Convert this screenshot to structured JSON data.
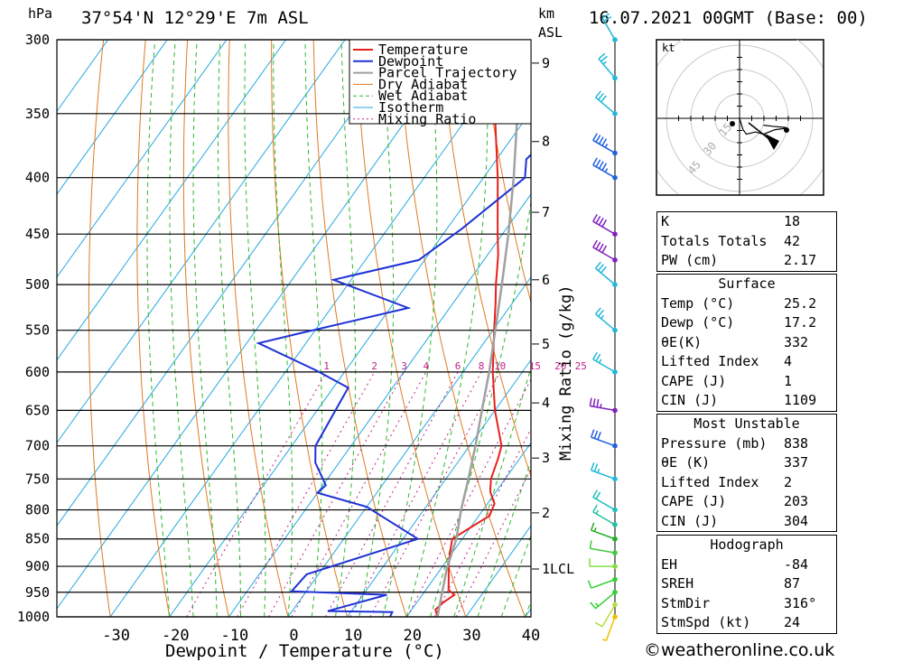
{
  "header": {
    "location": "37°54'N  12°29'E  7m  ASL",
    "datetime": "16.07.2021  00GMT  (Base: 00)",
    "pressure_unit": "hPa",
    "height_unit_line1": "km",
    "height_unit_line2": "ASL"
  },
  "chart_data": {
    "type": "line",
    "title": "37°54'N  12°29'E  7m  ASL",
    "xlabel": "Dewpoint / Temperature (°C)",
    "ylabel": "hPa",
    "y2label": "Mixing Ratio (g/kg)",
    "xlim": [
      -40,
      40
    ],
    "ylim": [
      1000,
      300
    ],
    "x_ticks": [
      "-30",
      "-20",
      "-10",
      "0",
      "10",
      "20",
      "30",
      "40"
    ],
    "y_ticks": [
      300,
      350,
      400,
      450,
      500,
      550,
      600,
      650,
      700,
      750,
      800,
      850,
      900,
      950,
      1000
    ],
    "km_ticks": [
      {
        "label": "9",
        "p": 315
      },
      {
        "label": "8",
        "p": 371
      },
      {
        "label": "7",
        "p": 430
      },
      {
        "label": "6",
        "p": 495
      },
      {
        "label": "5",
        "p": 566
      },
      {
        "label": "4",
        "p": 640
      },
      {
        "label": "3",
        "p": 718
      },
      {
        "label": "2",
        "p": 805
      },
      {
        "label": "1LCL",
        "p": 905
      }
    ],
    "mixing_ratio_labels": [
      "1",
      "2",
      "3",
      "4",
      "6",
      "8",
      "10",
      "15",
      "20",
      "25"
    ],
    "legend": {
      "placement": "top-right",
      "entries": [
        "Temperature",
        "Dewpoint",
        "Parcel Trajectory",
        "Dry Adiabat",
        "Wet Adiabat",
        "Isotherm",
        "Mixing Ratio"
      ]
    },
    "series": [
      {
        "name": "Temperature",
        "color": "#e8201c",
        "points": [
          [
            1000,
            25.2
          ],
          [
            985,
            24.0
          ],
          [
            970,
            24.5
          ],
          [
            955,
            25.4
          ],
          [
            945,
            23.8
          ],
          [
            925,
            22.6
          ],
          [
            900,
            21.0
          ],
          [
            875,
            19.6
          ],
          [
            850,
            18.3
          ],
          [
            830,
            20.0
          ],
          [
            810,
            21.8
          ],
          [
            790,
            21.2
          ],
          [
            770,
            19.0
          ],
          [
            750,
            17.6
          ],
          [
            720,
            16.4
          ],
          [
            700,
            15.4
          ],
          [
            650,
            10.0
          ],
          [
            600,
            5.0
          ],
          [
            550,
            0.2
          ],
          [
            520,
            -2.8
          ],
          [
            500,
            -5.0
          ],
          [
            470,
            -8.2
          ],
          [
            450,
            -10.8
          ],
          [
            400,
            -17.6
          ],
          [
            350,
            -25.8
          ],
          [
            335,
            -27.0
          ],
          [
            320,
            -29.5
          ],
          [
            300,
            -32.0
          ]
        ]
      },
      {
        "name": "Dewpoint",
        "color": "#1e32d6",
        "points": [
          [
            1000,
            17.2
          ],
          [
            990,
            17.0
          ],
          [
            988,
            6.0
          ],
          [
            955,
            14.0
          ],
          [
            948,
            -2.5
          ],
          [
            915,
            -2.0
          ],
          [
            850,
            12.5
          ],
          [
            795,
            0.0
          ],
          [
            772,
            -10.0
          ],
          [
            760,
            -9.5
          ],
          [
            725,
            -14.0
          ],
          [
            700,
            -16.0
          ],
          [
            620,
            -17.5
          ],
          [
            598,
            -25.0
          ],
          [
            565,
            -38.0
          ],
          [
            555,
            -33.0
          ],
          [
            525,
            -17.0
          ],
          [
            495,
            -33.0
          ],
          [
            475,
            -21.0
          ],
          [
            445,
            -17.5
          ],
          [
            400,
            -13.0
          ],
          [
            385,
            -15.0
          ],
          [
            355,
            -13.0
          ],
          [
            340,
            -27.0
          ],
          [
            325,
            -21.0
          ],
          [
            320,
            -27.5
          ],
          [
            300,
            -23.0
          ]
        ]
      },
      {
        "name": "Parcel Trajectory",
        "color": "#a0a0a0",
        "points": [
          [
            1000,
            25.2
          ],
          [
            905,
            21.0
          ],
          [
            850,
            19.0
          ],
          [
            800,
            16.3
          ],
          [
            750,
            13.8
          ],
          [
            700,
            11.0
          ],
          [
            650,
            7.8
          ],
          [
            600,
            4.4
          ],
          [
            550,
            0.4
          ],
          [
            500,
            -4.0
          ],
          [
            450,
            -9.0
          ],
          [
            400,
            -14.9
          ],
          [
            350,
            -22.0
          ],
          [
            300,
            -30.5
          ]
        ]
      }
    ],
    "hodograph": {
      "unit": "kt",
      "rings": [
        "15",
        "30",
        "45"
      ],
      "points": [
        [
          0,
          0
        ],
        [
          3,
          10
        ],
        [
          6,
          14
        ],
        [
          14,
          12
        ],
        [
          21,
          14
        ],
        [
          31,
          10
        ],
        [
          39,
          9
        ],
        [
          40,
          8
        ],
        [
          29,
          7
        ],
        [
          21,
          6
        ]
      ]
    },
    "wind_barbs": [
      {
        "p": 1000,
        "color": "#f0c000",
        "dir": 200,
        "spd": 5
      },
      {
        "p": 975,
        "color": "#b4e040",
        "dir": 210,
        "spd": 10
      },
      {
        "p": 950,
        "color": "#30d030",
        "dir": 230,
        "spd": 15
      },
      {
        "p": 925,
        "color": "#30d030",
        "dir": 250,
        "spd": 10
      },
      {
        "p": 900,
        "color": "#80e040",
        "dir": 270,
        "spd": 10
      },
      {
        "p": 875,
        "color": "#40c840",
        "dir": 280,
        "spd": 10
      },
      {
        "p": 850,
        "color": "#20b020",
        "dir": 290,
        "spd": 15
      },
      {
        "p": 825,
        "color": "#20c0a0",
        "dir": 300,
        "spd": 15
      },
      {
        "p": 800,
        "color": "#20c0c0",
        "dir": 300,
        "spd": 20
      },
      {
        "p": 750,
        "color": "#20b8d8",
        "dir": 290,
        "spd": 25
      },
      {
        "p": 700,
        "color": "#2060e0",
        "dir": 290,
        "spd": 30
      },
      {
        "p": 650,
        "color": "#8020c0",
        "dir": 280,
        "spd": 35
      },
      {
        "p": 600,
        "color": "#20b8d8",
        "dir": 300,
        "spd": 25
      },
      {
        "p": 550,
        "color": "#20b8d8",
        "dir": 310,
        "spd": 25
      },
      {
        "p": 500,
        "color": "#20b8d8",
        "dir": 310,
        "spd": 30
      },
      {
        "p": 475,
        "color": "#8020c0",
        "dir": 300,
        "spd": 40
      },
      {
        "p": 450,
        "color": "#8020c0",
        "dir": 300,
        "spd": 40
      },
      {
        "p": 400,
        "color": "#2060e0",
        "dir": 300,
        "spd": 45
      },
      {
        "p": 380,
        "color": "#2060e0",
        "dir": 300,
        "spd": 45
      },
      {
        "p": 350,
        "color": "#20b8d8",
        "dir": 310,
        "spd": 30
      },
      {
        "p": 325,
        "color": "#20b8d8",
        "dir": 320,
        "spd": 25
      },
      {
        "p": 300,
        "color": "#20b8d8",
        "dir": 330,
        "spd": 20
      }
    ]
  },
  "indices": [
    {
      "label": "K",
      "value": "18"
    },
    {
      "label": "Totals Totals",
      "value": "42"
    },
    {
      "label": "PW (cm)",
      "value": "2.17"
    }
  ],
  "surface": {
    "title": "Surface",
    "rows": [
      {
        "label": "Temp (°C)",
        "value": "25.2"
      },
      {
        "label": "Dewp (°C)",
        "value": "17.2"
      },
      {
        "label": "θE(K)",
        "value": "332"
      },
      {
        "label": "Lifted Index",
        "value": "4"
      },
      {
        "label": "CAPE (J)",
        "value": "1"
      },
      {
        "label": "CIN (J)",
        "value": "1109"
      }
    ]
  },
  "most_unstable": {
    "title": "Most Unstable",
    "rows": [
      {
        "label": "Pressure (mb)",
        "value": "838"
      },
      {
        "label": "θE (K)",
        "value": "337"
      },
      {
        "label": "Lifted Index",
        "value": "2"
      },
      {
        "label": "CAPE (J)",
        "value": "203"
      },
      {
        "label": "CIN (J)",
        "value": "304"
      }
    ]
  },
  "hodograph_table": {
    "title": "Hodograph",
    "rows": [
      {
        "label": "EH",
        "value": "-84"
      },
      {
        "label": "SREH",
        "value": "87"
      },
      {
        "label": "StmDir",
        "value": "316°"
      },
      {
        "label": "StmSpd (kt)",
        "value": "24"
      }
    ]
  },
  "footer": {
    "text": "©weatheronline.co.uk"
  },
  "colors": {
    "temperature": "#e8201c",
    "dewpoint": "#1e32d6",
    "parcel": "#a0a0a0",
    "dry_adiabat": "#e07a20",
    "wet_adiabat": "#2fb82f",
    "isotherm": "#22a8e0",
    "mixing_ratio": "#c0208a"
  }
}
